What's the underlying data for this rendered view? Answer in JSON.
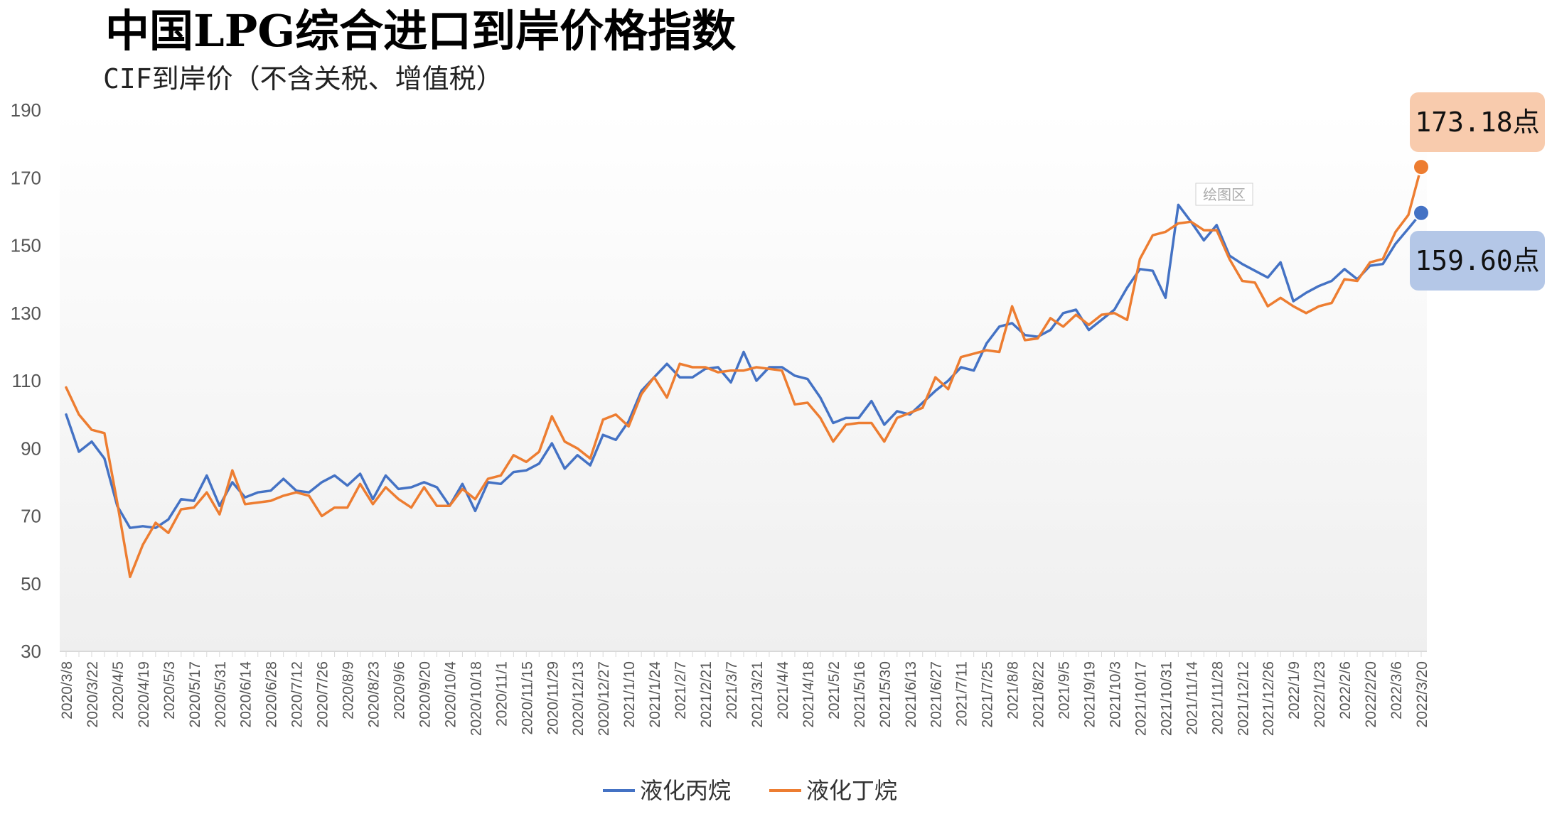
{
  "chart_data": {
    "type": "line",
    "title": "中国LPG综合进口到岸价格指数",
    "subtitle": "CIF到岸价（不含关税、增值税）",
    "ylim": [
      30,
      190
    ],
    "yticks": [
      "30",
      "50",
      "70",
      "90",
      "110",
      "130",
      "150",
      "170",
      "190"
    ],
    "xlabels": [
      "2020/3/8",
      "2020/3/22",
      "2020/4/5",
      "2020/4/19",
      "2020/5/3",
      "2020/5/17",
      "2020/5/31",
      "2020/6/14",
      "2020/6/28",
      "2020/7/12",
      "2020/7/26",
      "2020/8/9",
      "2020/8/23",
      "2020/9/6",
      "2020/9/20",
      "2020/10/4",
      "2020/10/18",
      "2020/11/1",
      "2020/11/15",
      "2020/11/29",
      "2020/12/13",
      "2020/12/27",
      "2021/1/10",
      "2021/1/24",
      "2021/2/7",
      "2021/2/21",
      "2021/3/7",
      "2021/3/21",
      "2021/4/4",
      "2021/4/18",
      "2021/5/2",
      "2021/5/16",
      "2021/5/30",
      "2021/6/13",
      "2021/6/27",
      "2021/7/11",
      "2021/7/25",
      "2021/8/8",
      "2021/8/22",
      "2021/9/5",
      "2021/9/19",
      "2021/10/3",
      "2021/10/17",
      "2021/10/31",
      "2021/11/14",
      "2021/11/28",
      "2021/12/12",
      "2021/12/26",
      "2022/1/9",
      "2022/1/23",
      "2022/2/6",
      "2022/2/20",
      "2022/3/6",
      "2022/3/20"
    ],
    "grid": false,
    "legend": "bottom",
    "plot_area_label": "绘图区",
    "series": [
      {
        "name": "液化丙烷",
        "color": "#4472C4",
        "values": [
          100,
          89,
          92,
          87,
          73,
          66.5,
          67,
          66.5,
          69,
          75,
          74.5,
          82,
          73,
          80,
          75.5,
          77,
          77.5,
          81,
          77.5,
          77,
          80,
          82,
          79,
          82.5,
          75,
          82,
          78,
          78.5,
          80,
          78.5,
          73,
          79.5,
          71.5,
          80,
          79.5,
          83,
          83.5,
          85.5,
          91.5,
          84,
          88,
          85,
          94,
          92.5,
          98,
          107,
          111,
          115,
          111,
          111,
          113.5,
          114,
          109.5,
          118.5,
          110,
          114,
          114,
          111.5,
          110.5,
          105,
          97.5,
          99,
          99,
          104,
          97,
          101,
          100,
          103.5,
          107,
          110,
          114,
          113,
          121,
          126,
          127,
          123.5,
          123,
          125,
          130,
          131,
          125,
          128,
          131,
          137.5,
          143,
          142.5,
          134.5,
          162,
          157,
          151.5,
          156,
          147,
          144.5,
          142.5,
          140.5,
          145,
          133.5,
          136,
          138,
          139.5,
          143,
          140,
          144,
          144.5,
          150.5,
          155,
          159.6
        ]
      },
      {
        "name": "液化丁烷",
        "color": "#ED7D31",
        "values": [
          108,
          100,
          95.5,
          94.5,
          74,
          52,
          61.5,
          68,
          65,
          72,
          72.5,
          77,
          70.5,
          83.5,
          73.5,
          74,
          74.5,
          76,
          77,
          76,
          70,
          72.5,
          72.5,
          79.5,
          73.5,
          78.5,
          75,
          72.5,
          78.5,
          73,
          73,
          78,
          75,
          81,
          82,
          88,
          86,
          89,
          99.5,
          92,
          90,
          87,
          98.5,
          100,
          96.5,
          106,
          111,
          105,
          115,
          114,
          114,
          112.5,
          113,
          113,
          114,
          113.5,
          113,
          103,
          103.5,
          99,
          92,
          97,
          97.5,
          97.5,
          92,
          99,
          100.5,
          102,
          111,
          107.5,
          117,
          118,
          119,
          118.5,
          132,
          122,
          122.5,
          128.5,
          126,
          129.5,
          126.5,
          129.5,
          130,
          128,
          146,
          153,
          154,
          156.5,
          157,
          154.5,
          154.5,
          146,
          139.5,
          139,
          132,
          134.5,
          132,
          130,
          132,
          133,
          140,
          139.5,
          145,
          146,
          154,
          159,
          173.18
        ]
      }
    ],
    "callouts": [
      {
        "series": "液化丁烷",
        "text": "173.18点",
        "value": 173.18,
        "box_color": "#F8CBAD"
      },
      {
        "series": "液化丙烷",
        "text": "159.60点",
        "value": 159.6,
        "box_color": "#B4C7E7"
      }
    ]
  }
}
